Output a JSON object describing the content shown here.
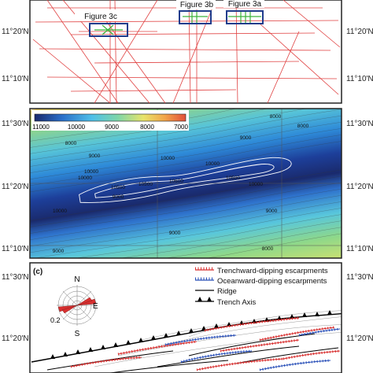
{
  "panel_a": {
    "boxes": [
      {
        "label": "Figure 3c"
      },
      {
        "label": "Figure 3b"
      },
      {
        "label": "Figure 3a"
      }
    ],
    "colors": {
      "track": "#e04040",
      "box": "#1f3c8c",
      "fig_marks": "#3cb43c"
    }
  },
  "latitudes": {
    "lat_20_top": "11°20'N",
    "lat_10_top": "11°10'N",
    "lat_30_mid": "11°30'N",
    "lat_20_mid": "11°20'N",
    "lat_10_mid": "11°10'N",
    "lat_30_bot": "11°30'N",
    "lat_20_bot": "11°20'N"
  },
  "panel_b": {
    "colorbar_ticks": [
      "11000",
      "10000",
      "9000",
      "8000",
      "7000"
    ],
    "colorbar_colors": [
      "#1a2a6c",
      "#2a6fc9",
      "#4fc0e8",
      "#7ed6a8",
      "#e8e46a",
      "#f2a64a",
      "#e2503a"
    ],
    "contour_labels": [
      "8000",
      "9000",
      "10000",
      "10500",
      "10500",
      "10600",
      "10500",
      "10000",
      "10000",
      "9000",
      "9000",
      "8000",
      "8000",
      "9000",
      "8000",
      "10000",
      "10000",
      "9000",
      "9000",
      "10000"
    ]
  },
  "panel_c": {
    "label": "(c)",
    "compass": {
      "north": "N",
      "south": "S",
      "east": "E",
      "scale": "0.2"
    },
    "legend": [
      {
        "label": "Trenchward-dipping escarpments",
        "color": "#d83030"
      },
      {
        "label": "Oceanward-dipping escarpments",
        "color": "#2a50b8"
      },
      {
        "label": "Ridge",
        "color": "#000000"
      },
      {
        "label": "Trench Axis",
        "color": "#000000"
      }
    ]
  }
}
